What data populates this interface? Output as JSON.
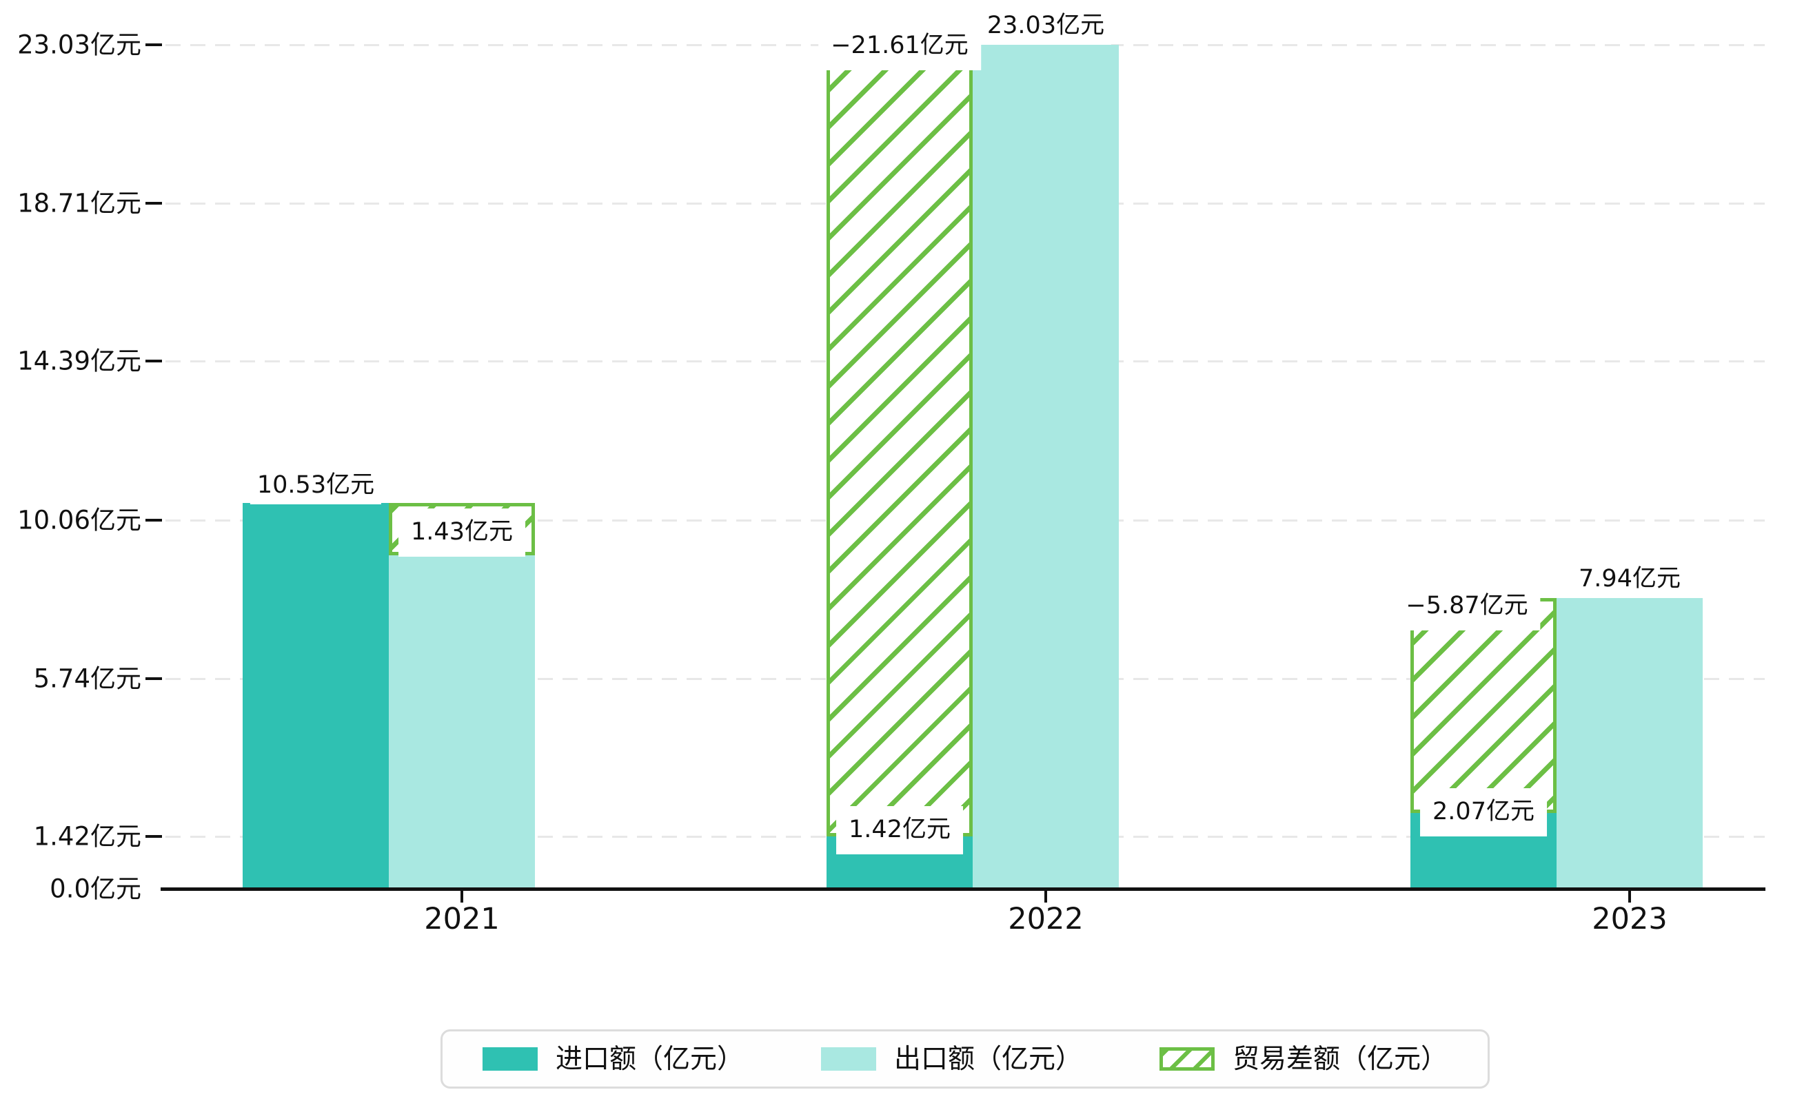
{
  "chart_data": {
    "type": "bar",
    "title": "",
    "xlabel": "",
    "ylabel": "",
    "categories": [
      "2021",
      "2022",
      "2023"
    ],
    "series": [
      {
        "name": "进口额（亿元）",
        "values": [
          10.53,
          1.42,
          2.07
        ],
        "color": "#2fc1b2",
        "pattern": "solid"
      },
      {
        "name": "出口额（亿元）",
        "values": [
          9.1,
          23.03,
          7.94
        ],
        "color": "#a9e8e1",
        "pattern": "solid"
      },
      {
        "name": "贸易差额（亿元）",
        "values": [
          1.43,
          -21.61,
          -5.87
        ],
        "color": "#6cbf45",
        "pattern": "diagonal-hatch",
        "note": "floating bar spanning from the smaller of import/export up to the larger"
      }
    ],
    "bar_labels": {
      "import": [
        "10.53亿元",
        "1.42亿元",
        "2.07亿元"
      ],
      "export": [
        "",
        "23.03亿元",
        "7.94亿元"
      ],
      "balance": [
        "1.43亿元",
        "−21.61亿元",
        "−5.87亿元"
      ]
    },
    "yticks": {
      "labels": [
        "0.0亿元",
        "1.42亿元",
        "5.74亿元",
        "10.06亿元",
        "14.39亿元",
        "18.71亿元",
        "23.03亿元"
      ],
      "values": [
        0,
        1.42,
        5.74,
        10.06,
        14.39,
        18.71,
        23.03
      ]
    },
    "ylim": [
      0,
      23.03
    ],
    "grid": "dashed-horizontal",
    "legend_position": "bottom-center"
  },
  "colors": {
    "import": "#2fc1b2",
    "export": "#a9e8e1",
    "balance": "#6cbf45",
    "gridline": "#e8e8e8",
    "axis": "#111111",
    "text": "#111111",
    "legend_border": "#dcdcdc",
    "background": "#ffffff"
  }
}
